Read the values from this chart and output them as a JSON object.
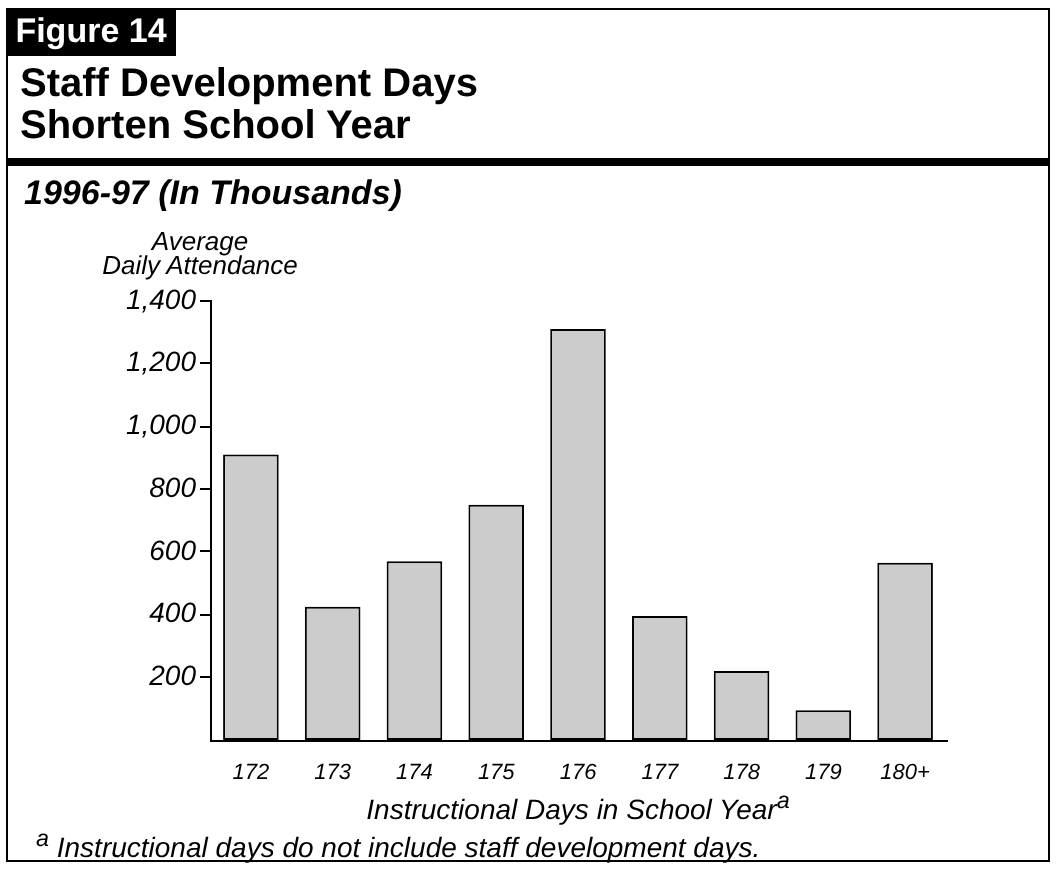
{
  "chart_data": {
    "type": "bar",
    "title": "Staff Development Days\nShorten School Year",
    "subtitle": "1996-97 (In Thousands)",
    "xlabel": "Instructional Days in School Year$^{a}$",
    "ylabel": "Average\nDaily Attendance",
    "annotations": [
      "Figure 14",
      "$^{a}$ Instructional days do not include staff development days."
    ],
    "categories": [
      "172",
      "173",
      "174",
      "175",
      "176",
      "177",
      "178",
      "179",
      "180+"
    ],
    "values": [
      910,
      425,
      570,
      750,
      1310,
      395,
      220,
      95,
      565
    ],
    "color": "#cccccc",
    "ylim": [
      0,
      1400
    ],
    "yticks": [
      200,
      400,
      600,
      800,
      {
        "value": 1000,
        "label": "1,000"
      },
      {
        "value": 1200,
        "label": "1,200"
      },
      {
        "value": 1400,
        "label": "1,400"
      }
    ]
  }
}
